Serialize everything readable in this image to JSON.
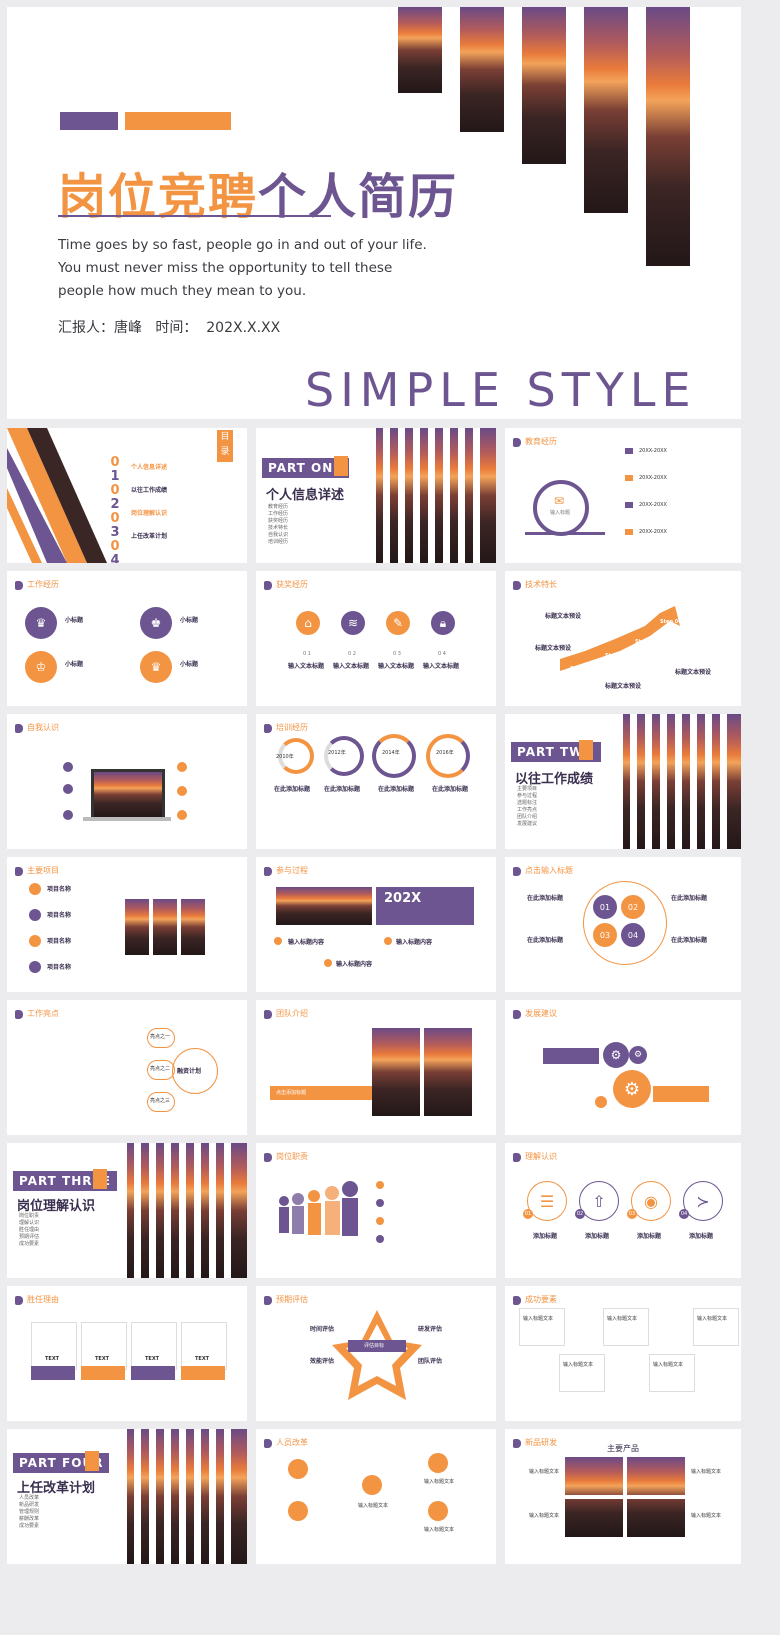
{
  "cover": {
    "title_orange": "岗位竞聘",
    "title_purple": "个人简历",
    "body": "Time goes by so fast, people go in and out of your life. You must never miss the opportunity to tell these people how much they mean to you.",
    "meta": "汇报人：唐峰   时间：  202X.X.XX",
    "tagline": "SIMPLE STYLE"
  },
  "toc": {
    "badge": "目录",
    "numbers": [
      "0",
      "1",
      "0",
      "2",
      "0",
      "3",
      "0",
      "4"
    ],
    "items": [
      "个人信息详述",
      "以往工作成绩",
      "岗位理解认识",
      "上任改革计划"
    ]
  },
  "parts": [
    {
      "label": "PART ONE",
      "title": "个人信息详述",
      "list": [
        "教育经历",
        "工作经历",
        "获奖经历",
        "技术特长",
        "自我认识",
        "培训经历"
      ]
    },
    {
      "label": "PART TWO",
      "title": "以往工作成绩",
      "list": [
        "主要项目",
        "参与过程",
        "选题标注",
        "工作亮点",
        "团队介绍",
        "发展建议"
      ]
    },
    {
      "label": "PART THREE",
      "title": "岗位理解认识",
      "list": [
        "岗位职责",
        "理解认识",
        "胜任理由",
        "预期评估",
        "成功要素"
      ]
    },
    {
      "label": "PART FOUR",
      "title": "上任改革计划",
      "list": [
        "人员改革",
        "新品研发",
        "管理规则",
        "薪酬改革",
        "成功要素"
      ]
    }
  ],
  "headers": {
    "edu": "教育经历",
    "work": "工作经历",
    "award": "获奖经历",
    "skill": "技术特长",
    "self": "自我认识",
    "train": "培训经历",
    "project": "主要项目",
    "process": "参与过程",
    "topic": "点击输入标题",
    "highlight": "工作亮点",
    "team": "团队介绍",
    "dev": "发展建议",
    "duty": "岗位职责",
    "understand": "理解认识",
    "reason": "胜任理由",
    "expect": "预期评估",
    "success": "成功要素",
    "staff": "人员改革",
    "product": "新品研发"
  },
  "edu": {
    "years": [
      "20XX-20XX",
      "20XX-20XX",
      "20XX-20XX",
      "20XX-20XX"
    ],
    "center": "输入标题"
  },
  "work_items": [
    "小标题",
    "小标题",
    "小标题",
    "小标题"
  ],
  "award": {
    "nums": [
      "0 1",
      "0 2",
      "0 3",
      "0 4"
    ],
    "label": "输入文本标题"
  },
  "skill": {
    "steps": [
      "Step 01",
      "Step 02",
      "Step 03",
      "Step 04"
    ],
    "label": "标题文本预设"
  },
  "train": {
    "years": [
      "2010年",
      "2012年",
      "2014年",
      "2016年"
    ],
    "label": "在此添加标题"
  },
  "project": {
    "items": [
      "项目名称",
      "项目名称",
      "项目名称",
      "项目名称"
    ]
  },
  "process": {
    "year": "202X",
    "items": [
      "输入标题内容",
      "输入标题内容",
      "输入标题内容"
    ]
  },
  "topic": {
    "items": [
      "在此添加标题",
      "在此添加标题",
      "在此添加标题",
      "在此添加标题"
    ],
    "nums": [
      "01",
      "02",
      "03",
      "04"
    ]
  },
  "highlight": {
    "center": "融资计划",
    "nodes": [
      "亮点之一",
      "亮点之二",
      "亮点之三"
    ]
  },
  "team": {
    "bar": "点击添加标题"
  },
  "understand": {
    "label": "添加标题",
    "nums": [
      "01",
      "02",
      "03",
      "04"
    ]
  },
  "reason": {
    "label": "TEXT"
  },
  "expect": {
    "center": "评估目标",
    "items": [
      "时间评估",
      "研发评估",
      "效能评估",
      "团队评估"
    ]
  },
  "success": {
    "label": "输入标题文本"
  },
  "staff": {
    "label": "人员改革",
    "input": "输入标题文本"
  },
  "product": {
    "center": "主要产品",
    "label": "输入标题文本"
  },
  "colors": {
    "orange": "#f39443",
    "purple": "#6c5590"
  }
}
